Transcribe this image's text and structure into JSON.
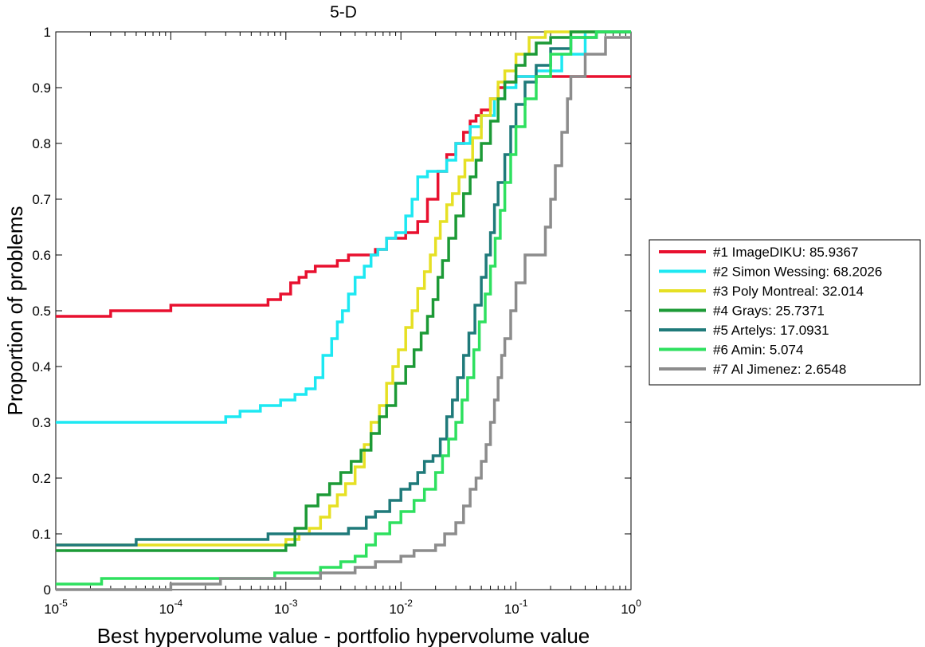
{
  "chart_data": {
    "type": "line",
    "title": "5-D",
    "xlabel": "Best hypervolume value - portfolio hypervolume value",
    "ylabel": "Proportion of problems",
    "x_scale": "log",
    "xlim": [
      1e-05,
      1
    ],
    "ylim": [
      0,
      1
    ],
    "x_ticks": [
      {
        "base": "10",
        "exp": "-5",
        "value": 1e-05
      },
      {
        "base": "10",
        "exp": "-4",
        "value": 0.0001
      },
      {
        "base": "10",
        "exp": "-3",
        "value": 0.001
      },
      {
        "base": "10",
        "exp": "-2",
        "value": 0.01
      },
      {
        "base": "10",
        "exp": "-1",
        "value": 0.1
      },
      {
        "base": "10",
        "exp": "0",
        "value": 1
      }
    ],
    "y_ticks": [
      "0",
      "0.1",
      "0.2",
      "0.3",
      "0.4",
      "0.5",
      "0.6",
      "0.7",
      "0.8",
      "0.9",
      "1"
    ],
    "grid": false,
    "legend_position": "right-outside",
    "series": [
      {
        "name": "#1 ImageDIKU: 85.9367",
        "color": "#e8102f",
        "x": [
          1e-05,
          2e-05,
          3e-05,
          5e-05,
          0.0001,
          0.0003,
          0.0007,
          0.0009,
          0.0011,
          0.0013,
          0.0015,
          0.0018,
          0.0022,
          0.0028,
          0.0035,
          0.0045,
          0.006,
          0.0075,
          0.009,
          0.011,
          0.014,
          0.017,
          0.021,
          0.025,
          0.03,
          0.035,
          0.04,
          0.045,
          0.05,
          0.06,
          0.07,
          0.08,
          0.1,
          0.13
        ],
        "y": [
          0.49,
          0.49,
          0.5,
          0.5,
          0.51,
          0.51,
          0.52,
          0.53,
          0.55,
          0.56,
          0.57,
          0.58,
          0.58,
          0.59,
          0.6,
          0.6,
          0.61,
          0.63,
          0.63,
          0.64,
          0.66,
          0.7,
          0.75,
          0.78,
          0.8,
          0.82,
          0.84,
          0.85,
          0.86,
          0.88,
          0.9,
          0.91,
          0.92,
          0.92
        ]
      },
      {
        "name": "#2 Simon Wessing: 68.2026",
        "color": "#1de8f2",
        "x": [
          1e-05,
          0.0001,
          0.00025,
          0.0003,
          0.0004,
          0.0006,
          0.0009,
          0.0012,
          0.0015,
          0.0018,
          0.0021,
          0.0025,
          0.0028,
          0.0031,
          0.0035,
          0.004,
          0.0048,
          0.0055,
          0.0063,
          0.0075,
          0.009,
          0.011,
          0.0125,
          0.014,
          0.017,
          0.02,
          0.025,
          0.03,
          0.04,
          0.05,
          0.065,
          0.08,
          0.1,
          0.15,
          0.25,
          0.4
        ],
        "y": [
          0.3,
          0.3,
          0.3,
          0.31,
          0.32,
          0.33,
          0.34,
          0.35,
          0.36,
          0.38,
          0.42,
          0.45,
          0.48,
          0.5,
          0.53,
          0.56,
          0.58,
          0.6,
          0.61,
          0.63,
          0.64,
          0.67,
          0.7,
          0.74,
          0.75,
          0.75,
          0.77,
          0.8,
          0.83,
          0.85,
          0.88,
          0.9,
          0.92,
          0.93,
          0.96,
          1.0
        ]
      },
      {
        "name": "#3 Poly Montreal: 32.014",
        "color": "#e6e024",
        "x": [
          1e-05,
          0.0001,
          0.00065,
          0.001,
          0.0013,
          0.0016,
          0.002,
          0.0024,
          0.0028,
          0.0033,
          0.004,
          0.0048,
          0.0055,
          0.0065,
          0.0075,
          0.0085,
          0.0095,
          0.011,
          0.0125,
          0.014,
          0.016,
          0.018,
          0.02,
          0.022,
          0.025,
          0.028,
          0.032,
          0.036,
          0.042,
          0.05,
          0.06,
          0.07,
          0.08,
          0.1,
          0.13,
          0.18,
          0.24,
          0.32
        ],
        "y": [
          0.08,
          0.08,
          0.08,
          0.09,
          0.1,
          0.11,
          0.13,
          0.15,
          0.17,
          0.19,
          0.22,
          0.26,
          0.3,
          0.33,
          0.37,
          0.4,
          0.43,
          0.47,
          0.5,
          0.54,
          0.57,
          0.6,
          0.63,
          0.66,
          0.69,
          0.71,
          0.74,
          0.77,
          0.81,
          0.85,
          0.88,
          0.91,
          0.93,
          0.96,
          0.99,
          1.0,
          1.0,
          1.0
        ]
      },
      {
        "name": "#4 Grays: 25.7371",
        "color": "#1c9a36",
        "x": [
          1e-05,
          0.0001,
          0.0005,
          0.001,
          0.0012,
          0.0015,
          0.0019,
          0.0024,
          0.003,
          0.0037,
          0.0045,
          0.0055,
          0.0065,
          0.0075,
          0.009,
          0.011,
          0.013,
          0.015,
          0.017,
          0.019,
          0.021,
          0.023,
          0.026,
          0.03,
          0.035,
          0.04,
          0.045,
          0.05,
          0.06,
          0.07,
          0.08,
          0.1,
          0.12,
          0.15,
          0.2,
          0.3,
          0.5
        ],
        "y": [
          0.07,
          0.07,
          0.07,
          0.08,
          0.11,
          0.15,
          0.17,
          0.19,
          0.21,
          0.23,
          0.25,
          0.28,
          0.31,
          0.33,
          0.37,
          0.4,
          0.43,
          0.46,
          0.49,
          0.52,
          0.56,
          0.59,
          0.63,
          0.67,
          0.71,
          0.74,
          0.77,
          0.8,
          0.84,
          0.88,
          0.91,
          0.94,
          0.96,
          0.98,
          0.99,
          1.0,
          1.0
        ]
      },
      {
        "name": "#5 Artelys: 17.0931",
        "color": "#1f7a7a",
        "x": [
          1e-05,
          5e-05,
          0.0001,
          0.0007,
          0.001,
          0.002,
          0.0035,
          0.005,
          0.006,
          0.008,
          0.01,
          0.012,
          0.014,
          0.016,
          0.019,
          0.022,
          0.025,
          0.028,
          0.031,
          0.035,
          0.039,
          0.044,
          0.05,
          0.055,
          0.06,
          0.065,
          0.07,
          0.08,
          0.09,
          0.1,
          0.12,
          0.15,
          0.2,
          0.3,
          0.5,
          1
        ],
        "y": [
          0.08,
          0.09,
          0.09,
          0.1,
          0.1,
          0.1,
          0.11,
          0.13,
          0.14,
          0.16,
          0.18,
          0.19,
          0.21,
          0.23,
          0.24,
          0.27,
          0.31,
          0.34,
          0.38,
          0.42,
          0.46,
          0.51,
          0.56,
          0.6,
          0.64,
          0.69,
          0.73,
          0.78,
          0.83,
          0.87,
          0.91,
          0.94,
          0.97,
          0.99,
          1.0,
          1.0
        ]
      },
      {
        "name": "#6 Amin: 5.074",
        "color": "#2ee05f",
        "x": [
          1e-05,
          2.5e-05,
          0.00026,
          0.0008,
          0.0012,
          0.002,
          0.003,
          0.004,
          0.005,
          0.006,
          0.008,
          0.01,
          0.013,
          0.016,
          0.02,
          0.023,
          0.026,
          0.03,
          0.034,
          0.038,
          0.043,
          0.048,
          0.054,
          0.06,
          0.066,
          0.073,
          0.08,
          0.09,
          0.1,
          0.12,
          0.15,
          0.2,
          0.3,
          0.5,
          1
        ],
        "y": [
          0.01,
          0.02,
          0.02,
          0.03,
          0.03,
          0.04,
          0.05,
          0.06,
          0.08,
          0.1,
          0.12,
          0.14,
          0.16,
          0.18,
          0.21,
          0.24,
          0.27,
          0.3,
          0.34,
          0.38,
          0.43,
          0.48,
          0.53,
          0.58,
          0.63,
          0.68,
          0.73,
          0.78,
          0.83,
          0.88,
          0.92,
          0.96,
          0.99,
          1.0,
          1.0
        ]
      },
      {
        "name": "#7 Al Jimenez: 2.6548",
        "color": "#8c8c8c",
        "x": [
          1e-05,
          0.0001,
          0.00027,
          0.001,
          0.002,
          0.004,
          0.006,
          0.008,
          0.01,
          0.013,
          0.016,
          0.02,
          0.024,
          0.03,
          0.035,
          0.04,
          0.045,
          0.05,
          0.055,
          0.06,
          0.065,
          0.07,
          0.075,
          0.08,
          0.09,
          0.1,
          0.12,
          0.15,
          0.18,
          0.2,
          0.22,
          0.25,
          0.28,
          0.3,
          0.4,
          0.6,
          1
        ],
        "y": [
          0.0,
          0.01,
          0.02,
          0.02,
          0.03,
          0.04,
          0.05,
          0.05,
          0.06,
          0.07,
          0.07,
          0.08,
          0.1,
          0.12,
          0.15,
          0.18,
          0.2,
          0.23,
          0.26,
          0.3,
          0.34,
          0.38,
          0.42,
          0.45,
          0.5,
          0.55,
          0.6,
          0.6,
          0.65,
          0.7,
          0.76,
          0.82,
          0.88,
          0.92,
          0.96,
          0.99,
          0.99
        ]
      }
    ]
  }
}
